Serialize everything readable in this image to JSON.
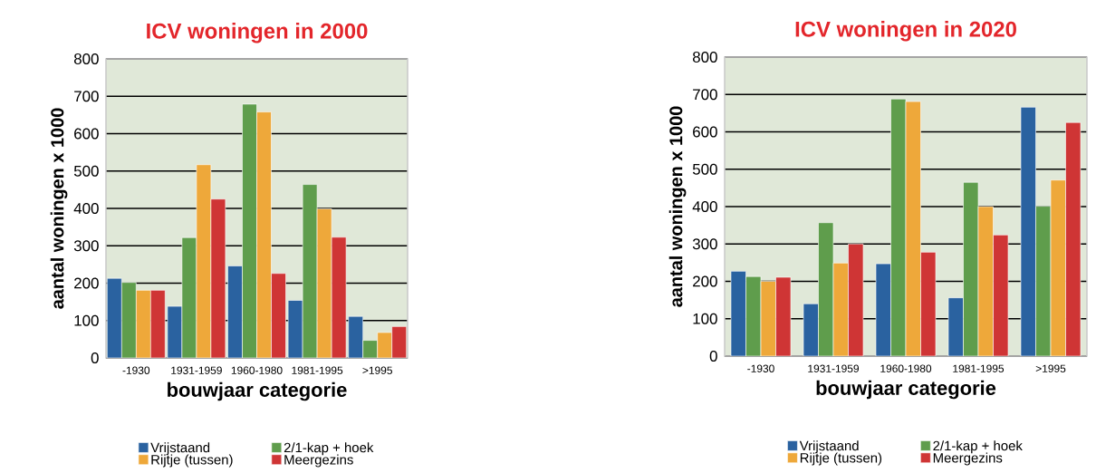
{
  "chart_data": [
    {
      "type": "bar",
      "title": "ICV woningen in 2000",
      "xlabel": "bouwjaar categorie",
      "ylabel": "aantal woningen x 1000",
      "categories": [
        "-1930",
        "1931-1959",
        "1960-1980",
        "1981-1995",
        ">1995"
      ],
      "series": [
        {
          "name": "Vrijstaand",
          "color": "#2a62a0",
          "values": [
            213,
            138,
            246,
            154,
            111
          ]
        },
        {
          "name": "2/1-kap + hoek",
          "color": "#5f9d4c",
          "values": [
            202,
            322,
            679,
            464,
            47
          ]
        },
        {
          "name": "Rijtje (tussen)",
          "color": "#eea83a",
          "values": [
            181,
            517,
            658,
            399,
            68
          ]
        },
        {
          "name": "Meergezins",
          "color": "#cf3535",
          "values": [
            181,
            425,
            226,
            323,
            84
          ]
        }
      ],
      "ylim": [
        0,
        800
      ],
      "yticks": [
        0,
        100,
        200,
        300,
        400,
        500,
        600,
        700,
        800
      ],
      "grid": "y",
      "legend": "bottom"
    },
    {
      "type": "bar",
      "title": "ICV woningen in 2020",
      "xlabel": "bouwjaar categorie",
      "ylabel": "aantal woningen x 1000",
      "categories": [
        "-1930",
        "1931-1959",
        "1960-1980",
        "1981-1995",
        ">1995"
      ],
      "series": [
        {
          "name": "Vrijstaand",
          "color": "#2a62a0",
          "values": [
            227,
            140,
            247,
            156,
            666
          ]
        },
        {
          "name": "2/1-kap + hoek",
          "color": "#5f9d4c",
          "values": [
            213,
            357,
            688,
            465,
            401
          ]
        },
        {
          "name": "Rijtje (tussen)",
          "color": "#eea83a",
          "values": [
            200,
            249,
            681,
            400,
            471
          ]
        },
        {
          "name": "Meergezins",
          "color": "#cf3535",
          "values": [
            211,
            300,
            278,
            324,
            625
          ]
        }
      ],
      "ylim": [
        0,
        800
      ],
      "yticks": [
        0,
        100,
        200,
        300,
        400,
        500,
        600,
        700,
        800
      ],
      "grid": "y",
      "legend": "bottom"
    }
  ]
}
